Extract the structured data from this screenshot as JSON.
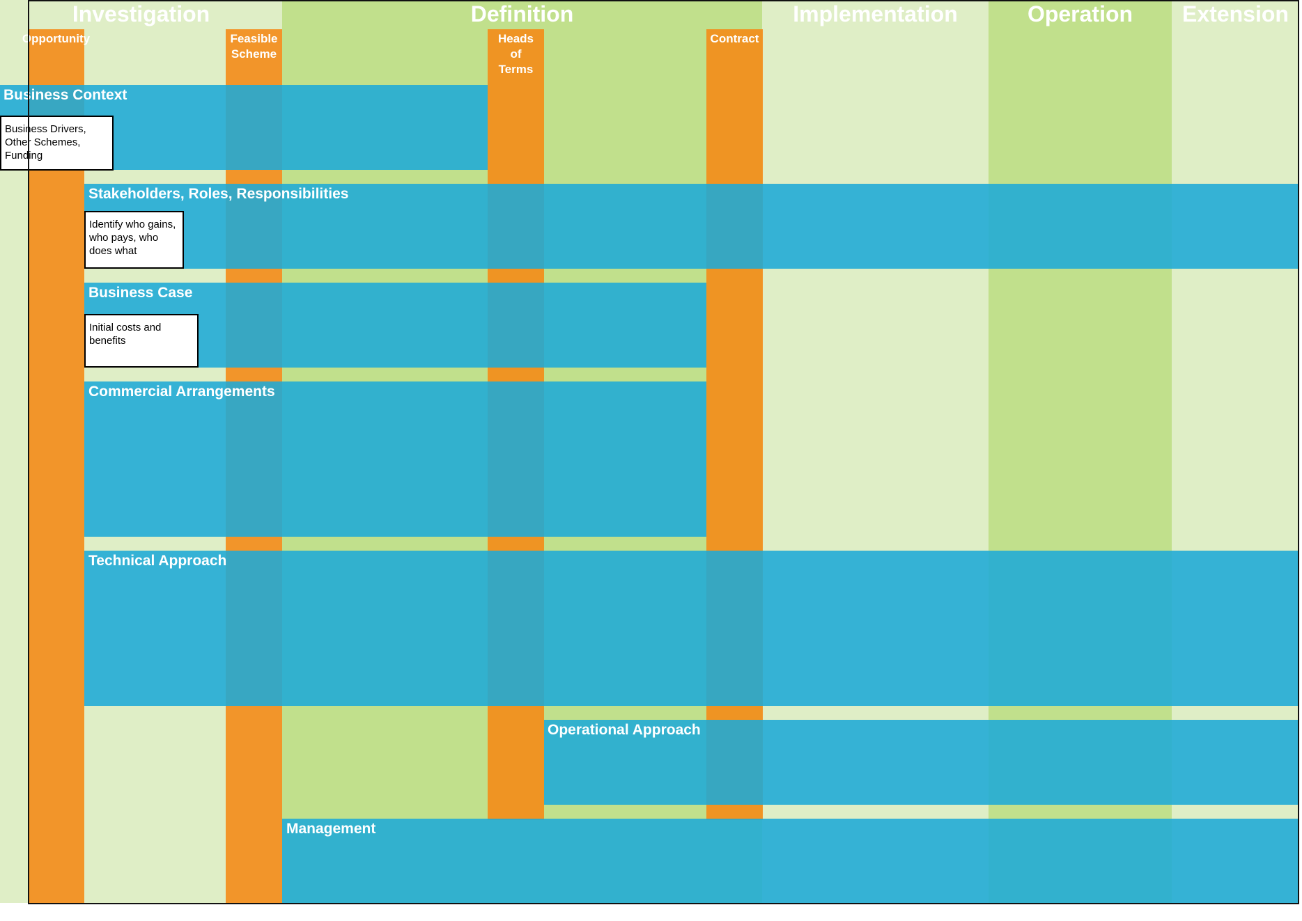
{
  "phases": [
    {
      "label": "Investigation",
      "color": "#dfeec6"
    },
    {
      "label": "Definition",
      "color": "#c1e08c"
    },
    {
      "label": "Implementation",
      "color": "#dfeec6"
    },
    {
      "label": "Operation",
      "color": "#c1e08c"
    },
    {
      "label": "Extension",
      "color": "#dfeec6"
    }
  ],
  "gates": [
    {
      "label": "Opportunity"
    },
    {
      "label": "Feasible\nScheme"
    },
    {
      "label": "Heads\nof\nTerms"
    },
    {
      "label": "Contract"
    }
  ],
  "bands": [
    {
      "label": "Business Context"
    },
    {
      "label": "Stakeholders, Roles, Responsibilities"
    },
    {
      "label": "Business Case"
    },
    {
      "label": "Commercial Arrangements"
    },
    {
      "label": "Technical Approach"
    },
    {
      "label": "Operational Approach"
    },
    {
      "label": "Management"
    }
  ],
  "notes": [
    {
      "text": "Business Drivers, Other Schemes, Funding"
    },
    {
      "text": "Identify who gains, who pays, who does what"
    },
    {
      "text": "Initial costs and benefits"
    }
  ]
}
